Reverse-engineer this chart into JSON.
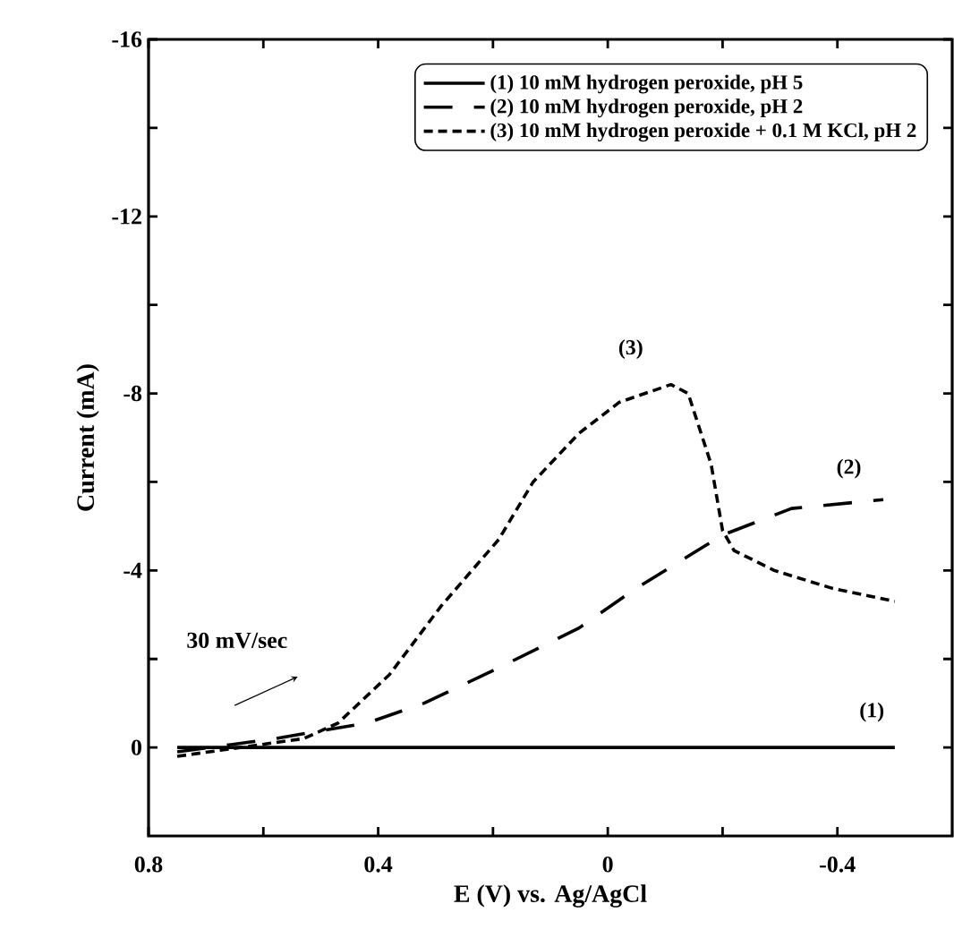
{
  "chart_data": {
    "type": "line",
    "xlabel": "E (V) vs. Ag/AgCl",
    "ylabel": "Current (mA)",
    "xlim": [
      0.8,
      -0.6
    ],
    "ylim": [
      2,
      -16
    ],
    "xticks": [
      0.8,
      {
        "value": 0.6,
        "label": null
      },
      0.4,
      {
        "value": 0.2,
        "label": null
      },
      0,
      {
        "value": -0.2,
        "label": null
      },
      -0.4
    ],
    "yticks": [
      0,
      {
        "value": -2,
        "label": null
      },
      -4,
      {
        "value": -6,
        "label": null
      },
      -8,
      {
        "value": -10,
        "label": null
      },
      -12,
      {
        "value": -14,
        "label": null
      },
      -16
    ],
    "legend": "top right",
    "grid": false,
    "marker": "none",
    "series": [
      {
        "name": "(1) 10 mM hydrogen peroxide, pH 5",
        "color": "#000000",
        "line_style": "solid",
        "x": [
          0.75,
          0.5,
          0.2,
          -0.1,
          -0.5
        ],
        "values": [
          0,
          0,
          0,
          0,
          0
        ]
      },
      {
        "name": "(2) 10 mM hydrogen peroxide, pH 2",
        "color": "#000000",
        "line_style": "dashed",
        "x": [
          0.75,
          0.58,
          0.42,
          0.32,
          0.19,
          0.05,
          -0.05,
          -0.2,
          -0.32,
          -0.48
        ],
        "values": [
          0.1,
          -0.2,
          -0.55,
          -1.0,
          -1.8,
          -2.7,
          -3.6,
          -4.8,
          -5.4,
          -5.6
        ]
      },
      {
        "name": "(3) 10 mM hydrogen peroxide + 0.1 M KCl, pH 2",
        "color": "#000000",
        "line_style": "dashed",
        "x": [
          0.75,
          0.53,
          0.47,
          0.38,
          0.29,
          0.19,
          0.13,
          0.05,
          -0.02,
          -0.11,
          -0.14,
          -0.17,
          -0.18,
          -0.2,
          -0.22,
          -0.29,
          -0.39,
          -0.5
        ],
        "values": [
          0.2,
          -0.2,
          -0.55,
          -1.65,
          -3.2,
          -4.7,
          -6.0,
          -7.1,
          -7.8,
          -8.2,
          -8.0,
          -6.8,
          -6.4,
          -4.9,
          -4.45,
          -4.0,
          -3.6,
          -3.3
        ]
      }
    ],
    "annotations": [
      "(1)",
      "(2)",
      "(3)",
      "30 mV/sec"
    ]
  }
}
